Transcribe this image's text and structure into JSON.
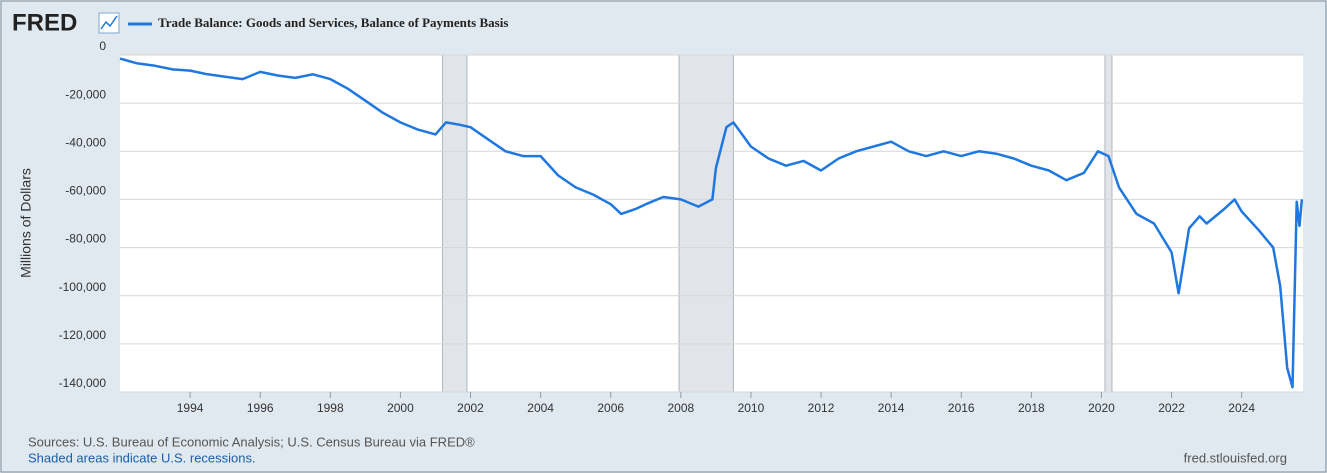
{
  "brand": "FRED",
  "chart_data": {
    "type": "line",
    "series": [
      {
        "name": "Trade Balance: Goods and Services, Balance of Payments Basis",
        "color": "#1f77e0",
        "x": [
          1992.0,
          1992.5,
          1993.0,
          1993.5,
          1994.0,
          1994.5,
          1995.0,
          1995.5,
          1996.0,
          1996.5,
          1997.0,
          1997.5,
          1998.0,
          1998.5,
          1999.0,
          1999.5,
          2000.0,
          2000.5,
          2001.0,
          2001.3,
          2001.7,
          2002.0,
          2002.5,
          2003.0,
          2003.5,
          2004.0,
          2004.5,
          2005.0,
          2005.5,
          2006.0,
          2006.3,
          2006.7,
          2007.0,
          2007.5,
          2008.0,
          2008.5,
          2008.9,
          2009.0,
          2009.3,
          2009.5,
          2010.0,
          2010.5,
          2011.0,
          2011.5,
          2012.0,
          2012.5,
          2013.0,
          2013.5,
          2014.0,
          2014.5,
          2015.0,
          2015.5,
          2016.0,
          2016.5,
          2017.0,
          2017.5,
          2018.0,
          2018.5,
          2019.0,
          2019.5,
          2019.9,
          2020.2,
          2020.5,
          2021.0,
          2021.5,
          2022.0,
          2022.2,
          2022.5,
          2022.8,
          2023.0,
          2023.5,
          2023.8,
          2024.0,
          2024.5,
          2024.9,
          2025.1,
          2025.3,
          2025.45,
          2025.57,
          2025.65,
          2025.72
        ],
        "values": [
          -1500,
          -3500,
          -4500,
          -6000,
          -6500,
          -8000,
          -9000,
          -10000,
          -7000,
          -8500,
          -9500,
          -8000,
          -10000,
          -14000,
          -19000,
          -24000,
          -28000,
          -31000,
          -33000,
          -28000,
          -29000,
          -30000,
          -35000,
          -40000,
          -42000,
          -42000,
          -50000,
          -55000,
          -58000,
          -62000,
          -66000,
          -64000,
          -62000,
          -59000,
          -60000,
          -63000,
          -60000,
          -47000,
          -30000,
          -28000,
          -38000,
          -43000,
          -46000,
          -44000,
          -48000,
          -43000,
          -40000,
          -38000,
          -36000,
          -40000,
          -42000,
          -40000,
          -42000,
          -40000,
          -41000,
          -43000,
          -46000,
          -48000,
          -52000,
          -49000,
          -40000,
          -42000,
          -55000,
          -66000,
          -70000,
          -82000,
          -99000,
          -72000,
          -67000,
          -70000,
          -64000,
          -60000,
          -65000,
          -73000,
          -80000,
          -96000,
          -130000,
          -138000,
          -61000,
          -71000,
          -60000
        ]
      }
    ],
    "recessions": [
      [
        2001.2,
        2001.9
      ],
      [
        2007.95,
        2009.5
      ],
      [
        2020.1,
        2020.3
      ]
    ],
    "xlim": [
      1992.0,
      2025.75
    ],
    "xticks": [
      1994,
      1996,
      1998,
      2000,
      2002,
      2004,
      2006,
      2008,
      2010,
      2012,
      2014,
      2016,
      2018,
      2020,
      2022,
      2024
    ],
    "ylim": [
      -140000,
      0
    ],
    "yticks": [
      {
        "value": -140000,
        "label": "-140,000"
      },
      {
        "value": -120000,
        "label": "-120,000"
      },
      {
        "value": -100000,
        "label": "-100,000"
      },
      {
        "value": -80000,
        "label": "-80,000"
      },
      {
        "value": -60000,
        "label": "-60,000"
      },
      {
        "value": -40000,
        "label": "-40,000"
      },
      {
        "value": -20000,
        "label": "-20,000"
      },
      0
    ],
    "y_label": "Millions of Dollars",
    "grid": true
  },
  "footer": {
    "source": "Sources: U.S. Bureau of Economic Analysis; U.S. Census Bureau via FRED®",
    "note": "Shaded areas indicate U.S. recessions.",
    "site": "fred.stlouisfed.org"
  }
}
